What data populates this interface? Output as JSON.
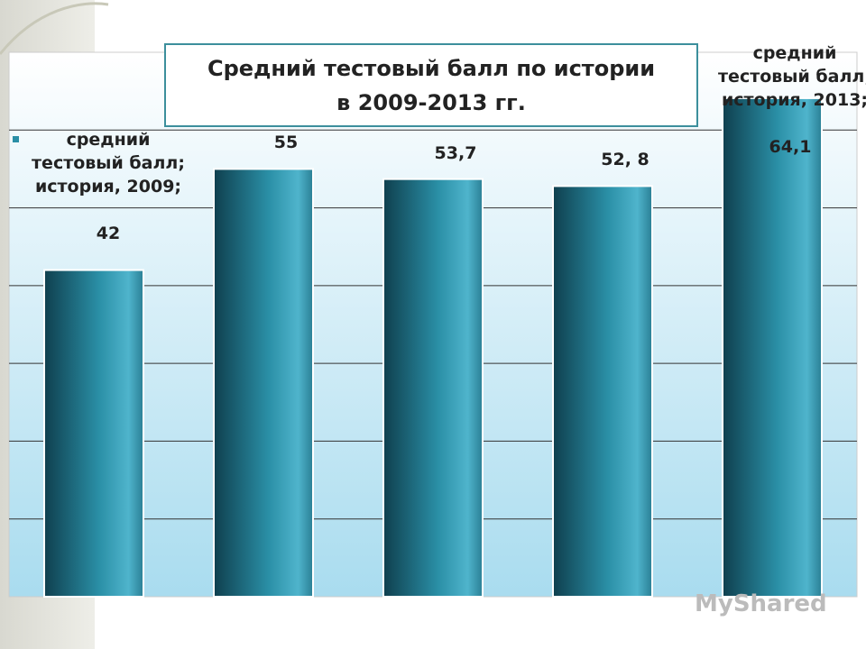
{
  "chart_data": {
    "type": "bar",
    "title": "Средний тестовый балл по истории в 2009-2013 гг.",
    "categories": [
      null,
      null,
      null,
      null,
      null
    ],
    "series": [
      {
        "name": "средний тестовый балл",
        "color": "#2a8fa6",
        "values": [
          42,
          55,
          53.7,
          52.8,
          64.1
        ],
        "value_labels": [
          "42",
          "55",
          "53,7",
          "52, 8",
          "64,1"
        ]
      }
    ],
    "annotations": [
      "средний тестовый балл; история, 2009;",
      "средний тестовый балл; история, 2013;"
    ],
    "ylim": [
      0,
      70
    ],
    "gridlines": [
      10,
      20,
      30,
      40,
      50,
      60
    ],
    "grid": true
  },
  "watermark": "MyShared"
}
